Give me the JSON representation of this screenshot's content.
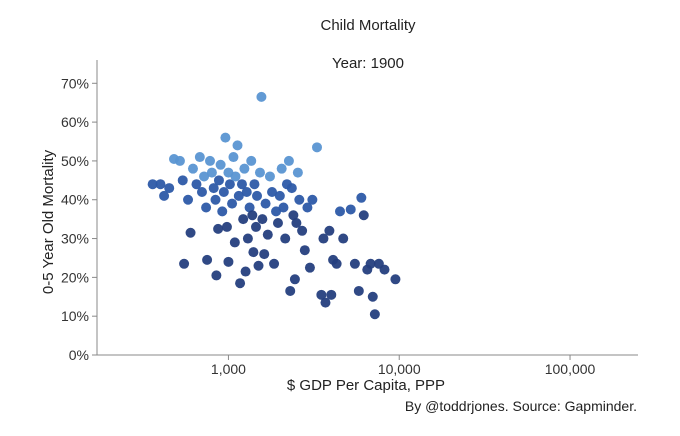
{
  "chart_data": {
    "type": "scatter",
    "title": "Child Mortality",
    "subtitle": "Year: 1900",
    "xlabel": "$ GDP Per Capita, PPP",
    "ylabel": "0-5 Year Old Mortality",
    "source": "By @toddrjones. Source: Gapminder.",
    "x_scale": "log",
    "xlim": [
      170,
      250000
    ],
    "ylim": [
      0,
      0.76
    ],
    "x_ticks": [
      {
        "value": 1000,
        "label": "1,000"
      },
      {
        "value": 10000,
        "label": "10,000"
      },
      {
        "value": 100000,
        "label": "100,000"
      }
    ],
    "y_ticks": [
      {
        "value": 0.0,
        "label": "0%"
      },
      {
        "value": 0.1,
        "label": "10%"
      },
      {
        "value": 0.2,
        "label": "20%"
      },
      {
        "value": 0.3,
        "label": "30%"
      },
      {
        "value": 0.4,
        "label": "40%"
      },
      {
        "value": 0.5,
        "label": "50%"
      },
      {
        "value": 0.6,
        "label": "60%"
      },
      {
        "value": 0.7,
        "label": "70%"
      }
    ],
    "colors": {
      "light": "#5a95d2",
      "mid": "#2d5aa8",
      "dark": "#253f7e",
      "axis": "#888888",
      "text": "#222222"
    },
    "points": [
      {
        "x": 360,
        "y": 0.44
      },
      {
        "x": 400,
        "y": 0.44
      },
      {
        "x": 420,
        "y": 0.41
      },
      {
        "x": 450,
        "y": 0.43
      },
      {
        "x": 480,
        "y": 0.505
      },
      {
        "x": 520,
        "y": 0.5
      },
      {
        "x": 540,
        "y": 0.45
      },
      {
        "x": 550,
        "y": 0.235
      },
      {
        "x": 580,
        "y": 0.4
      },
      {
        "x": 600,
        "y": 0.315
      },
      {
        "x": 620,
        "y": 0.48
      },
      {
        "x": 650,
        "y": 0.44
      },
      {
        "x": 680,
        "y": 0.51
      },
      {
        "x": 700,
        "y": 0.42
      },
      {
        "x": 720,
        "y": 0.46
      },
      {
        "x": 740,
        "y": 0.38
      },
      {
        "x": 750,
        "y": 0.245
      },
      {
        "x": 780,
        "y": 0.5
      },
      {
        "x": 800,
        "y": 0.47
      },
      {
        "x": 820,
        "y": 0.43
      },
      {
        "x": 840,
        "y": 0.4
      },
      {
        "x": 850,
        "y": 0.205
      },
      {
        "x": 870,
        "y": 0.325
      },
      {
        "x": 880,
        "y": 0.45
      },
      {
        "x": 900,
        "y": 0.49
      },
      {
        "x": 920,
        "y": 0.37
      },
      {
        "x": 940,
        "y": 0.42
      },
      {
        "x": 960,
        "y": 0.56
      },
      {
        "x": 980,
        "y": 0.33
      },
      {
        "x": 1000,
        "y": 0.47
      },
      {
        "x": 1000,
        "y": 0.24
      },
      {
        "x": 1020,
        "y": 0.44
      },
      {
        "x": 1050,
        "y": 0.39
      },
      {
        "x": 1070,
        "y": 0.51
      },
      {
        "x": 1090,
        "y": 0.29
      },
      {
        "x": 1100,
        "y": 0.46
      },
      {
        "x": 1130,
        "y": 0.54
      },
      {
        "x": 1150,
        "y": 0.41
      },
      {
        "x": 1170,
        "y": 0.185
      },
      {
        "x": 1200,
        "y": 0.44
      },
      {
        "x": 1220,
        "y": 0.35
      },
      {
        "x": 1240,
        "y": 0.48
      },
      {
        "x": 1260,
        "y": 0.215
      },
      {
        "x": 1280,
        "y": 0.42
      },
      {
        "x": 1300,
        "y": 0.3
      },
      {
        "x": 1330,
        "y": 0.38
      },
      {
        "x": 1360,
        "y": 0.5
      },
      {
        "x": 1380,
        "y": 0.36
      },
      {
        "x": 1400,
        "y": 0.265
      },
      {
        "x": 1420,
        "y": 0.44
      },
      {
        "x": 1450,
        "y": 0.33
      },
      {
        "x": 1470,
        "y": 0.41
      },
      {
        "x": 1500,
        "y": 0.23
      },
      {
        "x": 1530,
        "y": 0.47
      },
      {
        "x": 1560,
        "y": 0.665
      },
      {
        "x": 1580,
        "y": 0.35
      },
      {
        "x": 1620,
        "y": 0.26
      },
      {
        "x": 1650,
        "y": 0.39
      },
      {
        "x": 1700,
        "y": 0.31
      },
      {
        "x": 1750,
        "y": 0.46
      },
      {
        "x": 1800,
        "y": 0.42
      },
      {
        "x": 1850,
        "y": 0.235
      },
      {
        "x": 1900,
        "y": 0.37
      },
      {
        "x": 1950,
        "y": 0.34
      },
      {
        "x": 2000,
        "y": 0.41
      },
      {
        "x": 2050,
        "y": 0.48
      },
      {
        "x": 2100,
        "y": 0.38
      },
      {
        "x": 2150,
        "y": 0.3
      },
      {
        "x": 2200,
        "y": 0.44
      },
      {
        "x": 2260,
        "y": 0.5
      },
      {
        "x": 2300,
        "y": 0.165
      },
      {
        "x": 2350,
        "y": 0.43
      },
      {
        "x": 2400,
        "y": 0.36
      },
      {
        "x": 2450,
        "y": 0.195
      },
      {
        "x": 2500,
        "y": 0.34
      },
      {
        "x": 2550,
        "y": 0.47
      },
      {
        "x": 2600,
        "y": 0.4
      },
      {
        "x": 2700,
        "y": 0.32
      },
      {
        "x": 2800,
        "y": 0.27
      },
      {
        "x": 2900,
        "y": 0.38
      },
      {
        "x": 3000,
        "y": 0.225
      },
      {
        "x": 3100,
        "y": 0.4
      },
      {
        "x": 3300,
        "y": 0.535
      },
      {
        "x": 3500,
        "y": 0.155
      },
      {
        "x": 3600,
        "y": 0.3
      },
      {
        "x": 3700,
        "y": 0.135
      },
      {
        "x": 3900,
        "y": 0.32
      },
      {
        "x": 4000,
        "y": 0.155
      },
      {
        "x": 4100,
        "y": 0.245
      },
      {
        "x": 4300,
        "y": 0.235
      },
      {
        "x": 4500,
        "y": 0.37
      },
      {
        "x": 4700,
        "y": 0.3
      },
      {
        "x": 5200,
        "y": 0.375
      },
      {
        "x": 5500,
        "y": 0.235
      },
      {
        "x": 5800,
        "y": 0.165
      },
      {
        "x": 6000,
        "y": 0.405
      },
      {
        "x": 6200,
        "y": 0.36
      },
      {
        "x": 6500,
        "y": 0.22
      },
      {
        "x": 6800,
        "y": 0.235
      },
      {
        "x": 7000,
        "y": 0.15
      },
      {
        "x": 7200,
        "y": 0.105
      },
      {
        "x": 7600,
        "y": 0.235
      },
      {
        "x": 8200,
        "y": 0.22
      },
      {
        "x": 9500,
        "y": 0.195
      }
    ]
  }
}
